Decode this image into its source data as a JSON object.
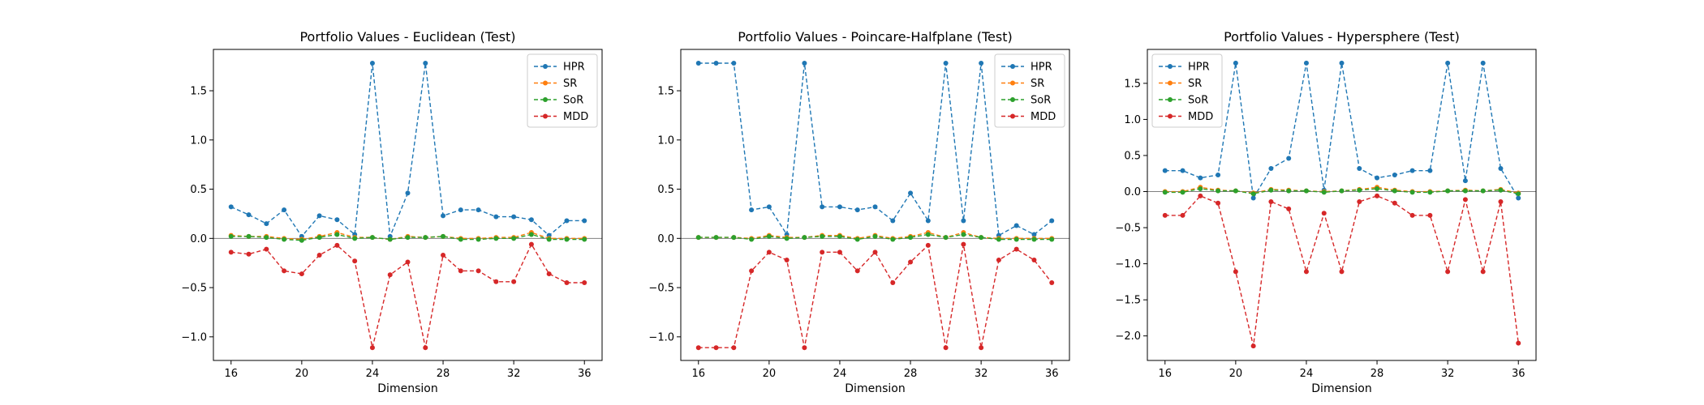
{
  "colors": {
    "HPR": "#1f77b4",
    "SR": "#ff7f0e",
    "SoR": "#2ca02c",
    "MDD": "#d62728",
    "zero_line": "#808080"
  },
  "chart_data": [
    {
      "type": "line",
      "title": "Portfolio Values - Euclidean (Test)",
      "xlabel": "Dimension",
      "ylabel": "",
      "xlim": [
        15.0,
        37.0
      ],
      "ylim": [
        -1.24,
        1.92
      ],
      "xticks": [
        16,
        20,
        24,
        28,
        32,
        36
      ],
      "yticks": [
        -1.0,
        -0.5,
        0.0,
        0.5,
        1.0,
        1.5
      ],
      "ytick_labels": [
        "−1.0",
        "−0.5",
        "0.0",
        "0.5",
        "1.0",
        "1.5"
      ],
      "legend": "top-right",
      "grid": false,
      "x": [
        16,
        17,
        18,
        19,
        20,
        21,
        22,
        23,
        24,
        25,
        26,
        27,
        28,
        29,
        30,
        31,
        32,
        33,
        34,
        35,
        36
      ],
      "series": [
        {
          "name": "HPR",
          "values": [
            0.32,
            0.24,
            0.15,
            0.29,
            0.02,
            0.23,
            0.19,
            0.04,
            1.78,
            0.02,
            0.46,
            1.78,
            0.23,
            0.29,
            0.29,
            0.22,
            0.22,
            0.19,
            0.03,
            0.18,
            0.18
          ]
        },
        {
          "name": "SR",
          "values": [
            0.03,
            0.02,
            0.02,
            0.0,
            -0.01,
            0.02,
            0.06,
            0.01,
            0.01,
            -0.01,
            0.02,
            0.01,
            0.02,
            0.0,
            0.0,
            0.01,
            0.01,
            0.06,
            0.0,
            0.0,
            0.0
          ]
        },
        {
          "name": "SoR",
          "values": [
            0.02,
            0.02,
            0.01,
            -0.01,
            -0.02,
            0.01,
            0.04,
            0.0,
            0.01,
            -0.01,
            0.01,
            0.01,
            0.02,
            -0.01,
            -0.01,
            0.0,
            0.0,
            0.04,
            -0.01,
            -0.01,
            -0.01
          ]
        },
        {
          "name": "MDD",
          "values": [
            -0.14,
            -0.16,
            -0.11,
            -0.33,
            -0.36,
            -0.17,
            -0.07,
            -0.23,
            -1.11,
            -0.37,
            -0.24,
            -1.11,
            -0.17,
            -0.33,
            -0.33,
            -0.44,
            -0.44,
            -0.06,
            -0.36,
            -0.45,
            -0.45
          ]
        }
      ]
    },
    {
      "type": "line",
      "title": "Portfolio Values - Poincare-Halfplane (Test)",
      "xlabel": "Dimension",
      "ylabel": "",
      "xlim": [
        15.0,
        37.0
      ],
      "ylim": [
        -1.24,
        1.92
      ],
      "xticks": [
        16,
        20,
        24,
        28,
        32,
        36
      ],
      "yticks": [
        -1.0,
        -0.5,
        0.0,
        0.5,
        1.0,
        1.5
      ],
      "ytick_labels": [
        "−1.0",
        "−0.5",
        "0.0",
        "0.5",
        "1.0",
        "1.5"
      ],
      "legend": "top-right",
      "grid": false,
      "x": [
        16,
        17,
        18,
        19,
        20,
        21,
        22,
        23,
        24,
        25,
        26,
        27,
        28,
        29,
        30,
        31,
        32,
        33,
        34,
        35,
        36
      ],
      "series": [
        {
          "name": "HPR",
          "values": [
            1.78,
            1.78,
            1.78,
            0.29,
            0.32,
            0.04,
            1.78,
            0.32,
            0.32,
            0.29,
            0.32,
            0.18,
            0.46,
            0.18,
            1.78,
            0.18,
            1.78,
            0.03,
            0.13,
            0.04,
            0.18
          ]
        },
        {
          "name": "SR",
          "values": [
            0.01,
            0.01,
            0.01,
            0.0,
            0.03,
            0.01,
            0.01,
            0.03,
            0.03,
            0.0,
            0.03,
            0.0,
            0.02,
            0.06,
            0.01,
            0.06,
            0.01,
            0.0,
            0.0,
            0.0,
            0.0
          ]
        },
        {
          "name": "SoR",
          "values": [
            0.01,
            0.01,
            0.01,
            -0.01,
            0.02,
            0.0,
            0.01,
            0.02,
            0.02,
            -0.01,
            0.02,
            -0.01,
            0.01,
            0.04,
            0.01,
            0.04,
            0.01,
            -0.01,
            -0.01,
            -0.01,
            -0.01
          ]
        },
        {
          "name": "MDD",
          "values": [
            -1.11,
            -1.11,
            -1.11,
            -0.33,
            -0.14,
            -0.22,
            -1.11,
            -0.14,
            -0.14,
            -0.33,
            -0.14,
            -0.45,
            -0.24,
            -0.07,
            -1.11,
            -0.06,
            -1.11,
            -0.22,
            -0.11,
            -0.22,
            -0.45
          ]
        }
      ]
    },
    {
      "type": "line",
      "title": "Portfolio Values - Hypersphere (Test)",
      "xlabel": "Dimension",
      "ylabel": "",
      "xlim": [
        15.0,
        37.0
      ],
      "ylim": [
        -2.34,
        1.97
      ],
      "xticks": [
        16,
        20,
        24,
        28,
        32,
        36
      ],
      "yticks": [
        -2.0,
        -1.5,
        -1.0,
        -0.5,
        0.0,
        0.5,
        1.0,
        1.5
      ],
      "ytick_labels": [
        "−2.0",
        "−1.5",
        "−1.0",
        "−0.5",
        "0.0",
        "0.5",
        "1.0",
        "1.5"
      ],
      "legend": "top-left",
      "grid": false,
      "x": [
        16,
        17,
        18,
        19,
        20,
        21,
        22,
        23,
        24,
        25,
        26,
        27,
        28,
        29,
        30,
        31,
        32,
        33,
        34,
        35,
        36
      ],
      "series": [
        {
          "name": "HPR",
          "values": [
            0.29,
            0.29,
            0.19,
            0.23,
            1.78,
            -0.09,
            0.32,
            0.46,
            1.78,
            0.02,
            1.78,
            0.32,
            0.19,
            0.23,
            0.29,
            0.29,
            1.78,
            0.15,
            1.78,
            0.32,
            -0.09
          ]
        },
        {
          "name": "SR",
          "values": [
            0.0,
            0.0,
            0.06,
            0.02,
            0.01,
            -0.02,
            0.03,
            0.02,
            0.01,
            0.0,
            0.01,
            0.03,
            0.06,
            0.02,
            0.0,
            0.0,
            0.01,
            0.02,
            0.01,
            0.03,
            -0.02
          ]
        },
        {
          "name": "SoR",
          "values": [
            -0.01,
            -0.01,
            0.04,
            0.01,
            0.01,
            -0.03,
            0.02,
            0.01,
            0.01,
            -0.01,
            0.01,
            0.02,
            0.04,
            0.01,
            -0.01,
            -0.01,
            0.01,
            0.01,
            0.01,
            0.02,
            -0.03
          ]
        },
        {
          "name": "MDD",
          "values": [
            -0.33,
            -0.33,
            -0.06,
            -0.16,
            -1.11,
            -2.14,
            -0.14,
            -0.24,
            -1.11,
            -0.3,
            -1.11,
            -0.14,
            -0.06,
            -0.16,
            -0.33,
            -0.33,
            -1.11,
            -0.11,
            -1.11,
            -0.14,
            -2.1
          ]
        }
      ]
    }
  ]
}
